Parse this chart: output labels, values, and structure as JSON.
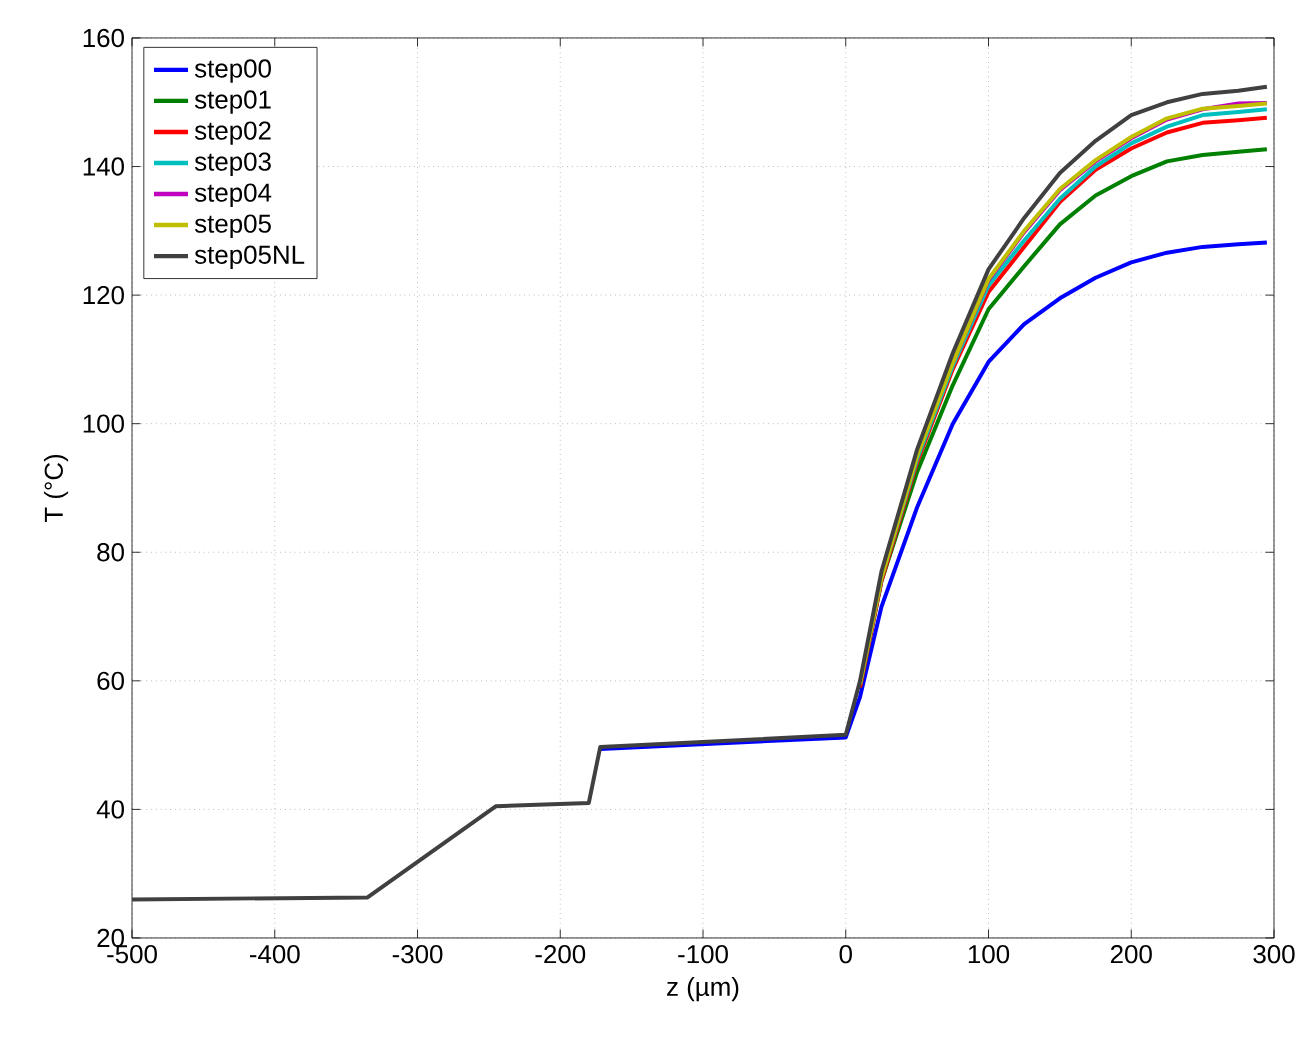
{
  "chart_data": {
    "type": "line",
    "xlabel": "z (µm)",
    "ylabel": "T (°C)",
    "x": [
      -500,
      -335,
      -245,
      -180,
      -172,
      0,
      10,
      25,
      50,
      75,
      100,
      125,
      150,
      175,
      200,
      225,
      250,
      275,
      295
    ],
    "xlim": [
      -500,
      300
    ],
    "xticks": [
      -500,
      -400,
      -300,
      -200,
      -100,
      0,
      100,
      200,
      300
    ],
    "ylim": [
      20,
      160
    ],
    "yticks": [
      20,
      40,
      60,
      80,
      100,
      120,
      140,
      160
    ],
    "grid": true,
    "legend": "top left",
    "line_style": "solid",
    "marker": "none",
    "series": [
      {
        "name": "step00",
        "color": "#0000ff",
        "values": [
          null,
          null,
          null,
          null,
          49.4,
          51.2,
          57.5,
          71.5,
          87,
          100,
          109.6,
          115.5,
          119.5,
          122.7,
          125.1,
          126.6,
          127.5,
          127.9,
          128.2
        ]
      },
      {
        "name": "step01",
        "color": "#008000",
        "values": [
          null,
          null,
          null,
          null,
          null,
          null,
          59,
          75.5,
          92.5,
          106,
          117.8,
          124.5,
          131,
          135.5,
          138.5,
          140.8,
          141.8,
          142.3,
          142.7
        ]
      },
      {
        "name": "step02",
        "color": "#ff0000",
        "values": [
          null,
          null,
          null,
          null,
          null,
          null,
          59,
          75.5,
          94,
          108.5,
          120.5,
          127.5,
          134.5,
          139.5,
          142.8,
          145.3,
          146.8,
          147.2,
          147.6
        ]
      },
      {
        "name": "step03",
        "color": "#00bfbf",
        "values": [
          null,
          null,
          null,
          null,
          null,
          null,
          59.5,
          76,
          94.5,
          109,
          121.5,
          128.5,
          135,
          140,
          143.6,
          146.2,
          148,
          148.5,
          148.9
        ]
      },
      {
        "name": "step04",
        "color": "#bf00bf",
        "values": [
          null,
          null,
          null,
          null,
          null,
          null,
          null,
          null,
          null,
          109.5,
          122.3,
          129.8,
          136.3,
          140.8,
          144.4,
          147.3,
          148.9,
          149.8,
          149.9
        ]
      },
      {
        "name": "step05",
        "color": "#bfbf00",
        "values": [
          null,
          null,
          null,
          null,
          null,
          null,
          59.5,
          76,
          95,
          109.5,
          122.5,
          130,
          136.5,
          141,
          144.6,
          147.5,
          149,
          149.4,
          149.8
        ]
      },
      {
        "name": "step05NL",
        "color": "#404040",
        "values": [
          26,
          26.3,
          40.5,
          41,
          49.7,
          51.6,
          60,
          77,
          96,
          111,
          124,
          132,
          139,
          144,
          148,
          150,
          151.3,
          151.8,
          152.4
        ]
      }
    ]
  }
}
